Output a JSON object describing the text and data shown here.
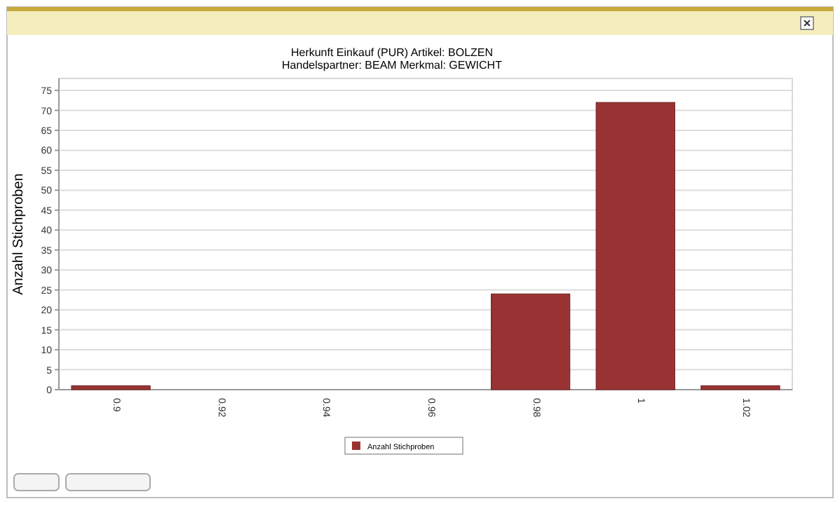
{
  "chart_data": {
    "type": "bar",
    "title": "Herkunft  Einkauf  (PUR) Artikel:  BOLZEN",
    "subtitle": "Handelspartner:  BEAM Merkmal:  GEWICHT",
    "ylabel": "Anzahl Stichproben",
    "categories": [
      "0.9",
      "0.92",
      "0.94",
      "0.96",
      "0.98",
      "1",
      "1.02"
    ],
    "series": [
      {
        "name": "Anzahl Stichproben",
        "color": "#993333",
        "values": [
          1,
          0,
          0,
          0,
          24,
          72,
          1
        ]
      }
    ],
    "ylim": [
      0,
      78
    ],
    "yticks": [
      0,
      5,
      10,
      15,
      20,
      25,
      30,
      35,
      40,
      45,
      50,
      55,
      60,
      65,
      70,
      75
    ],
    "grid": "y",
    "legend": "bottom"
  }
}
